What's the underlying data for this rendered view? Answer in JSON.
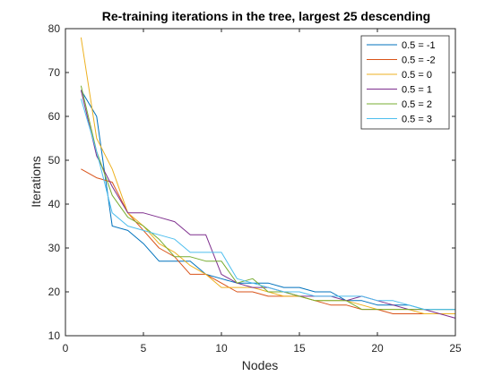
{
  "chart_data": {
    "type": "line",
    "title": "Re-training iterations in the tree, largest 25 descending",
    "xlabel": "Nodes",
    "ylabel": "Iterations",
    "xlim": [
      0,
      25
    ],
    "ylim": [
      10,
      80
    ],
    "xticks": [
      0,
      5,
      10,
      15,
      20,
      25
    ],
    "yticks": [
      10,
      20,
      30,
      40,
      50,
      60,
      70,
      80
    ],
    "grid": false,
    "legend_position": "top-right",
    "x": [
      1,
      2,
      3,
      4,
      5,
      6,
      7,
      8,
      9,
      10,
      11,
      12,
      13,
      14,
      15,
      16,
      17,
      18,
      19,
      20,
      21,
      22,
      23,
      24,
      25
    ],
    "series": [
      {
        "name": "0.5 = -1",
        "color": "#0072BD",
        "values": [
          66,
          60,
          35,
          34,
          31,
          27,
          27,
          27,
          24,
          23,
          22,
          22,
          22,
          21,
          21,
          20,
          20,
          18,
          18,
          17,
          17,
          17,
          16,
          16,
          16
        ]
      },
      {
        "name": "0.5 = -2",
        "color": "#D95319",
        "values": [
          48,
          46,
          45,
          38,
          34,
          30,
          28,
          24,
          24,
          22,
          20,
          20,
          19,
          19,
          19,
          18,
          17,
          17,
          16,
          16,
          15,
          15,
          15,
          15,
          15
        ]
      },
      {
        "name": "0.5 = 0",
        "color": "#EDB120",
        "values": [
          78,
          55,
          48,
          38,
          35,
          31,
          29,
          26,
          24,
          21,
          21,
          21,
          20,
          19,
          19,
          18,
          18,
          18,
          17,
          16,
          16,
          16,
          15,
          15,
          15
        ]
      },
      {
        "name": "0.5 = 1",
        "color": "#7E2F8E",
        "values": [
          66,
          51,
          44,
          38,
          38,
          37,
          36,
          33,
          33,
          24,
          22,
          21,
          21,
          20,
          19,
          19,
          19,
          18,
          19,
          18,
          17,
          16,
          16,
          15,
          14
        ]
      },
      {
        "name": "0.5 = 2",
        "color": "#77AC30",
        "values": [
          67,
          52,
          42,
          37,
          35,
          32,
          28,
          28,
          27,
          27,
          22,
          23,
          20,
          20,
          19,
          18,
          18,
          18,
          16,
          16,
          16,
          16,
          16,
          16,
          16
        ]
      },
      {
        "name": "0.5 = 3",
        "color": "#4DBEEE",
        "values": [
          64,
          52,
          38,
          35,
          34,
          33,
          32,
          29,
          29,
          29,
          23,
          22,
          21,
          20,
          20,
          19,
          19,
          19,
          19,
          18,
          18,
          17,
          16,
          16,
          16
        ]
      }
    ]
  }
}
